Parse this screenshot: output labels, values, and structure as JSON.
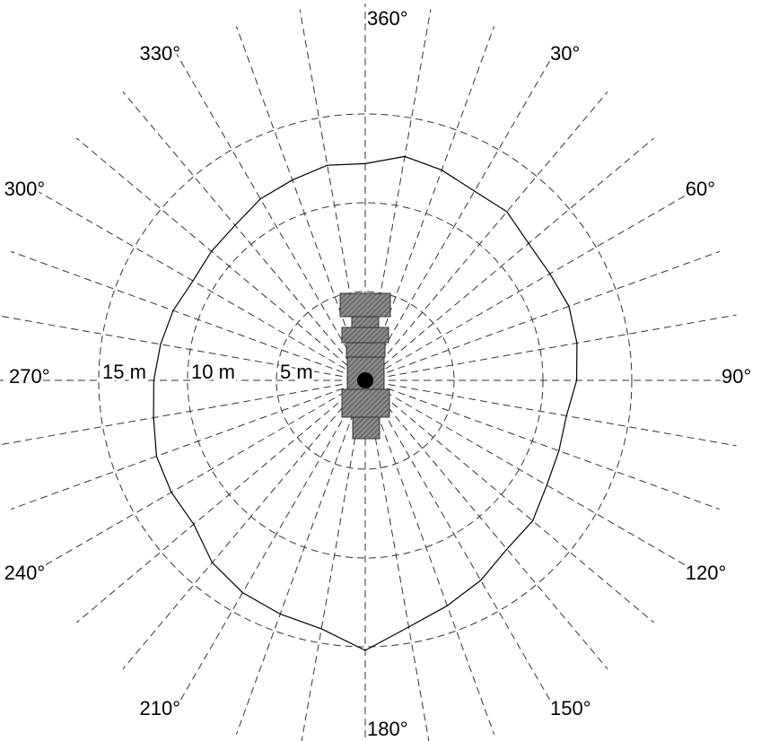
{
  "chart_data": {
    "type": "polar",
    "radial_unit": "m",
    "radial_max": 15,
    "rings": [
      {
        "r": 5,
        "label": "5 m"
      },
      {
        "r": 10,
        "label": "10 m"
      },
      {
        "r": 15,
        "label": "15 m"
      }
    ],
    "spoke_step_deg": 10,
    "angle_labels": [
      {
        "angle": 360,
        "text": "360°"
      },
      {
        "angle": 30,
        "text": "30°"
      },
      {
        "angle": 60,
        "text": "60°"
      },
      {
        "angle": 90,
        "text": "90°"
      },
      {
        "angle": 120,
        "text": "120°"
      },
      {
        "angle": 150,
        "text": "150°"
      },
      {
        "angle": 180,
        "text": "180°"
      },
      {
        "angle": 210,
        "text": "210°"
      },
      {
        "angle": 240,
        "text": "240°"
      },
      {
        "angle": 270,
        "text": "270°"
      },
      {
        "angle": 300,
        "text": "300°"
      },
      {
        "angle": 330,
        "text": "330°"
      }
    ],
    "series": [
      {
        "angles": [
          0,
          10,
          20,
          30,
          40,
          50,
          60,
          70,
          80,
          90,
          100,
          110,
          120,
          130,
          140,
          150,
          160,
          170,
          180,
          190,
          200,
          210,
          220,
          230,
          240,
          250,
          260,
          270,
          280,
          290,
          300,
          310,
          320,
          330,
          340,
          350
        ],
        "values": [
          12.2,
          12.8,
          12.6,
          12.3,
          12.4,
          12.0,
          12.0,
          12.2,
          12.1,
          11.9,
          11.5,
          11.6,
          11.8,
          12.3,
          12.4,
          13.0,
          13.5,
          14.1,
          15.2,
          14.2,
          14.0,
          13.8,
          13.4,
          12.6,
          12.6,
          12.5,
          12.1,
          11.9,
          11.7,
          11.5,
          11.2,
          11.3,
          11.4,
          11.8,
          12.0,
          12.3
        ]
      }
    ],
    "grid": true
  }
}
